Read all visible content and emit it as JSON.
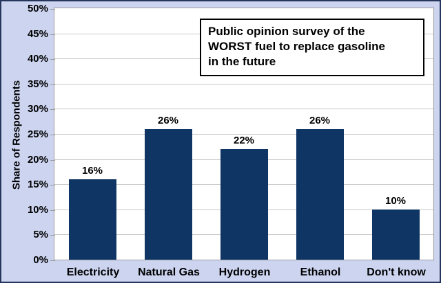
{
  "chart_data": {
    "type": "bar",
    "title": "Public opinion survey of the WORST fuel to replace gasoline in the future",
    "title_lines": [
      "Public opinion survey of the",
      "WORST fuel to replace gasoline",
      "in the future"
    ],
    "xlabel": "",
    "ylabel": "Share of Respondents",
    "categories": [
      "Electricity",
      "Natural Gas",
      "Hydrogen",
      "Ethanol",
      "Don't know"
    ],
    "values": [
      16,
      26,
      22,
      26,
      10
    ],
    "value_labels": [
      "16%",
      "26%",
      "22%",
      "26%",
      "10%"
    ],
    "ylim": [
      0,
      50
    ],
    "ytick_step": 5,
    "ytick_labels": [
      "0%",
      "5%",
      "10%",
      "15%",
      "20%",
      "25%",
      "30%",
      "35%",
      "40%",
      "45%",
      "50%"
    ],
    "grid": "horizontal",
    "legend": "none",
    "colors": {
      "bar": "#0e3563",
      "background": "#ccd4f0",
      "plot_background": "#ffffff",
      "gridline": "#c8c8c8",
      "plot_border": "#999999",
      "outer_border": "#25355c",
      "text": "#000000"
    }
  }
}
